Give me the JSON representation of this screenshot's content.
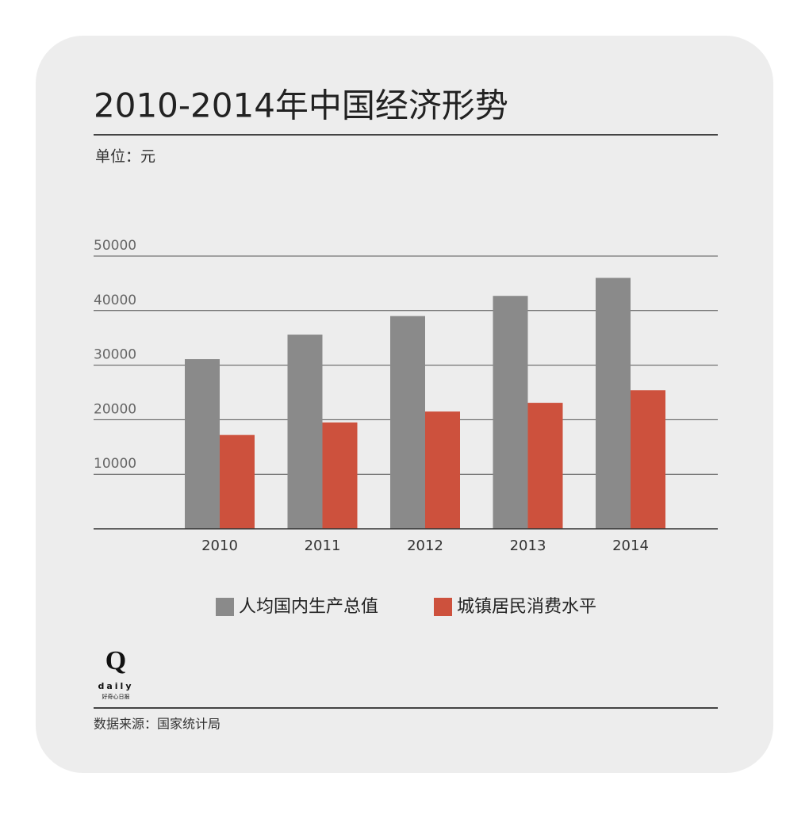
{
  "chart_data": {
    "type": "bar",
    "title": "2010-2014年中国经济形势",
    "subtitle": "单位：元",
    "categories": [
      "2010",
      "2011",
      "2012",
      "2013",
      "2014"
    ],
    "series": [
      {
        "name": "人均国内生产总值",
        "color": "#8a8a8a",
        "values": [
          31100,
          35600,
          39000,
          42700,
          46000
        ]
      },
      {
        "name": "城镇居民消费水平",
        "color": "#cd513d",
        "values": [
          17200,
          19500,
          21500,
          23100,
          25400
        ]
      }
    ],
    "ylim": [
      0,
      50000
    ],
    "yticks": [
      10000,
      20000,
      30000,
      40000,
      50000
    ],
    "grid": true,
    "source": "数据来源：国家统计局"
  },
  "logo": {
    "mark": "Q",
    "word": "daily",
    "name": "好奇心日报"
  }
}
